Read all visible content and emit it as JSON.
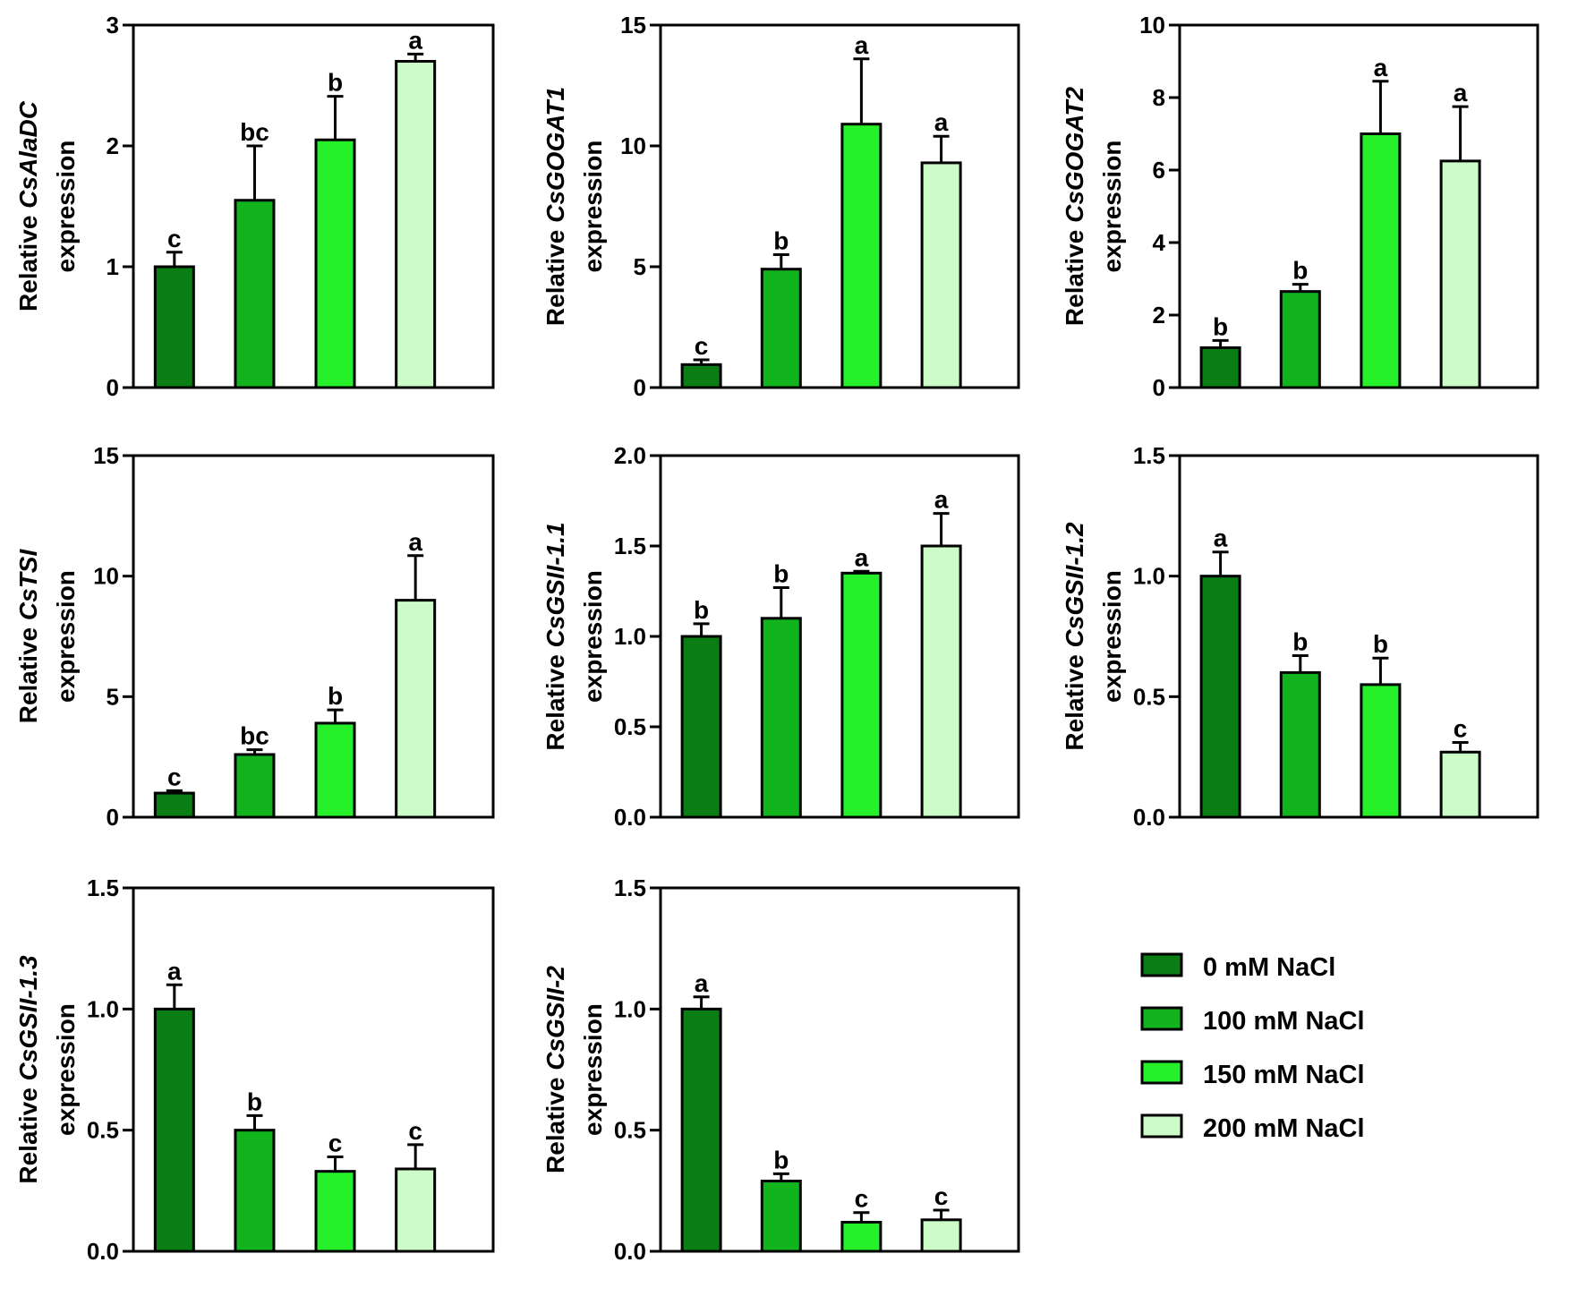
{
  "legend": {
    "items": [
      {
        "label": "0 mM NaCl",
        "color": "#0a7d14"
      },
      {
        "label": "100 mM NaCl",
        "color": "#12b41e"
      },
      {
        "label": "150 mM NaCl",
        "color": "#26f02a"
      },
      {
        "label": "200 mM NaCl",
        "color": "#ccfcc8"
      }
    ]
  },
  "chart_data": [
    {
      "type": "bar",
      "gene": "CsAlaDC",
      "ylabel_prefix": "Relative ",
      "ylabel_line2": "expression",
      "categories": [
        "0 mM NaCl",
        "100 mM NaCl",
        "150 mM NaCl",
        "200 mM NaCl"
      ],
      "values": [
        1.0,
        1.55,
        2.05,
        2.7
      ],
      "errors": [
        0.12,
        0.45,
        0.36,
        0.06
      ],
      "significance": [
        "c",
        "bc",
        "b",
        "a"
      ],
      "ylim": [
        0,
        3
      ],
      "yticks": [
        "0",
        "1",
        "2",
        "3"
      ]
    },
    {
      "type": "bar",
      "gene": "CsGOGAT1",
      "ylabel_prefix": "Relative ",
      "ylabel_line2": "expression",
      "categories": [
        "0 mM NaCl",
        "100 mM NaCl",
        "150 mM NaCl",
        "200 mM NaCl"
      ],
      "values": [
        0.95,
        4.9,
        10.9,
        9.3
      ],
      "errors": [
        0.2,
        0.6,
        2.7,
        1.1
      ],
      "significance": [
        "c",
        "b",
        "a",
        "a"
      ],
      "ylim": [
        0,
        15
      ],
      "yticks": [
        "0",
        "5",
        "10",
        "15"
      ]
    },
    {
      "type": "bar",
      "gene": "CsGOGAT2",
      "ylabel_prefix": "Relative ",
      "ylabel_line2": "expression",
      "categories": [
        "0 mM NaCl",
        "100 mM NaCl",
        "150 mM NaCl",
        "200 mM NaCl"
      ],
      "values": [
        1.1,
        2.65,
        7.0,
        6.25
      ],
      "errors": [
        0.2,
        0.2,
        1.45,
        1.5
      ],
      "significance": [
        "b",
        "b",
        "a",
        "a"
      ],
      "ylim": [
        0,
        10
      ],
      "yticks": [
        "0",
        "2",
        "4",
        "6",
        "8",
        "10"
      ]
    },
    {
      "type": "bar",
      "gene": "CsTSI",
      "ylabel_prefix": "Relative ",
      "ylabel_line2": "expression",
      "categories": [
        "0 mM NaCl",
        "100 mM NaCl",
        "150 mM NaCl",
        "200 mM NaCl"
      ],
      "values": [
        1.0,
        2.6,
        3.9,
        9.0
      ],
      "errors": [
        0.1,
        0.2,
        0.55,
        1.85
      ],
      "significance": [
        "c",
        "bc",
        "b",
        "a"
      ],
      "ylim": [
        0,
        15
      ],
      "yticks": [
        "0",
        "5",
        "10",
        "15"
      ]
    },
    {
      "type": "bar",
      "gene": "CsGSII-1.1",
      "ylabel_prefix": "Relative ",
      "ylabel_line2": "expression",
      "categories": [
        "0 mM NaCl",
        "100 mM NaCl",
        "150 mM NaCl",
        "200 mM NaCl"
      ],
      "values": [
        1.0,
        1.1,
        1.35,
        1.5
      ],
      "errors": [
        0.07,
        0.17,
        0.01,
        0.18
      ],
      "significance": [
        "b",
        "b",
        "a",
        "a"
      ],
      "ylim": [
        0,
        2.0
      ],
      "yticks": [
        "0.0",
        "0.5",
        "1.0",
        "1.5",
        "2.0"
      ]
    },
    {
      "type": "bar",
      "gene": "CsGSII-1.2",
      "ylabel_prefix": "Relative ",
      "ylabel_line2": "expression",
      "categories": [
        "0 mM NaCl",
        "100 mM NaCl",
        "150 mM NaCl",
        "200 mM NaCl"
      ],
      "values": [
        1.0,
        0.6,
        0.55,
        0.27
      ],
      "errors": [
        0.1,
        0.07,
        0.11,
        0.04
      ],
      "significance": [
        "a",
        "b",
        "b",
        "c"
      ],
      "ylim": [
        0,
        1.5
      ],
      "yticks": [
        "0.0",
        "0.5",
        "1.0",
        "1.5"
      ]
    },
    {
      "type": "bar",
      "gene": "CsGSII-1.3",
      "ylabel_prefix": "Relative ",
      "ylabel_line2": "expression",
      "categories": [
        "0 mM NaCl",
        "100 mM NaCl",
        "150 mM NaCl",
        "200 mM NaCl"
      ],
      "values": [
        1.0,
        0.5,
        0.33,
        0.34
      ],
      "errors": [
        0.1,
        0.06,
        0.06,
        0.1
      ],
      "significance": [
        "a",
        "b",
        "c",
        "c"
      ],
      "ylim": [
        0,
        1.5
      ],
      "yticks": [
        "0.0",
        "0.5",
        "1.0",
        "1.5"
      ]
    },
    {
      "type": "bar",
      "gene": "CsGSII-2",
      "ylabel_prefix": "Relative ",
      "ylabel_line2": "expression",
      "categories": [
        "0 mM NaCl",
        "100 mM NaCl",
        "150 mM NaCl",
        "200 mM NaCl"
      ],
      "values": [
        1.0,
        0.29,
        0.12,
        0.13
      ],
      "errors": [
        0.05,
        0.03,
        0.04,
        0.04
      ],
      "significance": [
        "a",
        "b",
        "c",
        "c"
      ],
      "ylim": [
        0,
        1.5
      ],
      "yticks": [
        "0.0",
        "0.5",
        "1.0",
        "1.5"
      ]
    }
  ]
}
